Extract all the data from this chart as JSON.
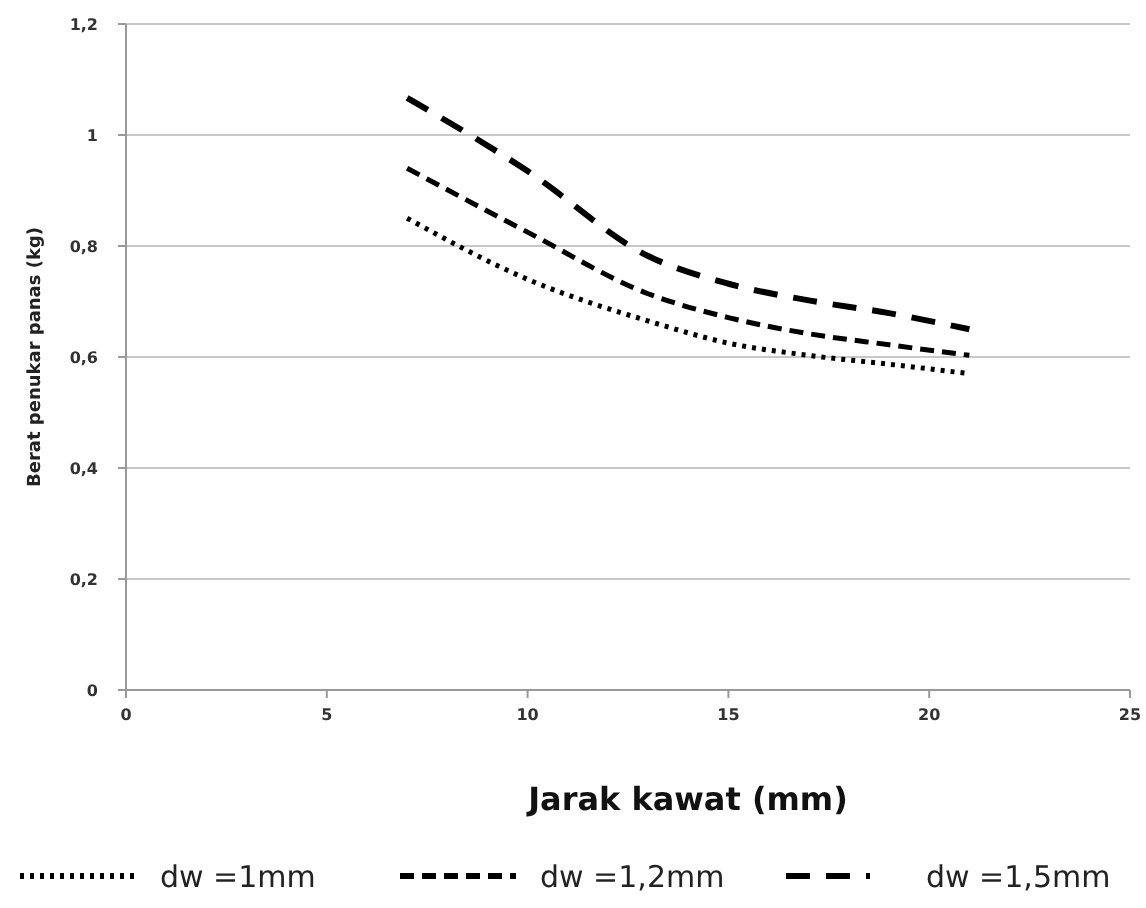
{
  "chart_data": {
    "type": "line",
    "xlabel": "Jarak kawat (mm)",
    "ylabel": "Berat penukar panas (kg)",
    "xlim": [
      0,
      25
    ],
    "xticks": [
      0,
      5,
      10,
      15,
      20,
      25
    ],
    "ylim": [
      0,
      1.2
    ],
    "yticks": [
      {
        "value": 0,
        "label": "0"
      },
      {
        "value": 0.2,
        "label": "0,2"
      },
      {
        "value": 0.4,
        "label": "0,4"
      },
      {
        "value": 0.6,
        "label": "0,6"
      },
      {
        "value": 0.8,
        "label": "0,8"
      },
      {
        "value": 1,
        "label": "1"
      },
      {
        "value": 1.2,
        "label": "1,2"
      }
    ],
    "grid": "y",
    "legend": "bottom",
    "marker": "none",
    "series": [
      {
        "name": "dw =1mm",
        "color": "#000000",
        "line_style": "dotted",
        "x": [
          7,
          10,
          13,
          15,
          17,
          19,
          21
        ],
        "values": [
          0.85,
          0.74,
          0.665,
          0.625,
          0.603,
          0.587,
          0.57
        ]
      },
      {
        "name": "dw =1,2mm",
        "color": "#000000",
        "line_style": "dashed",
        "x": [
          7,
          10,
          13,
          15,
          17,
          19,
          21
        ],
        "values": [
          0.94,
          0.825,
          0.714,
          0.671,
          0.642,
          0.622,
          0.603
        ]
      },
      {
        "name": "dw =1,5mm",
        "color": "#000000",
        "line_style": "dashed",
        "x": [
          7,
          10,
          13,
          15,
          17,
          19,
          21
        ],
        "values": [
          1.067,
          0.935,
          0.782,
          0.732,
          0.702,
          0.679,
          0.65
        ]
      }
    ]
  }
}
